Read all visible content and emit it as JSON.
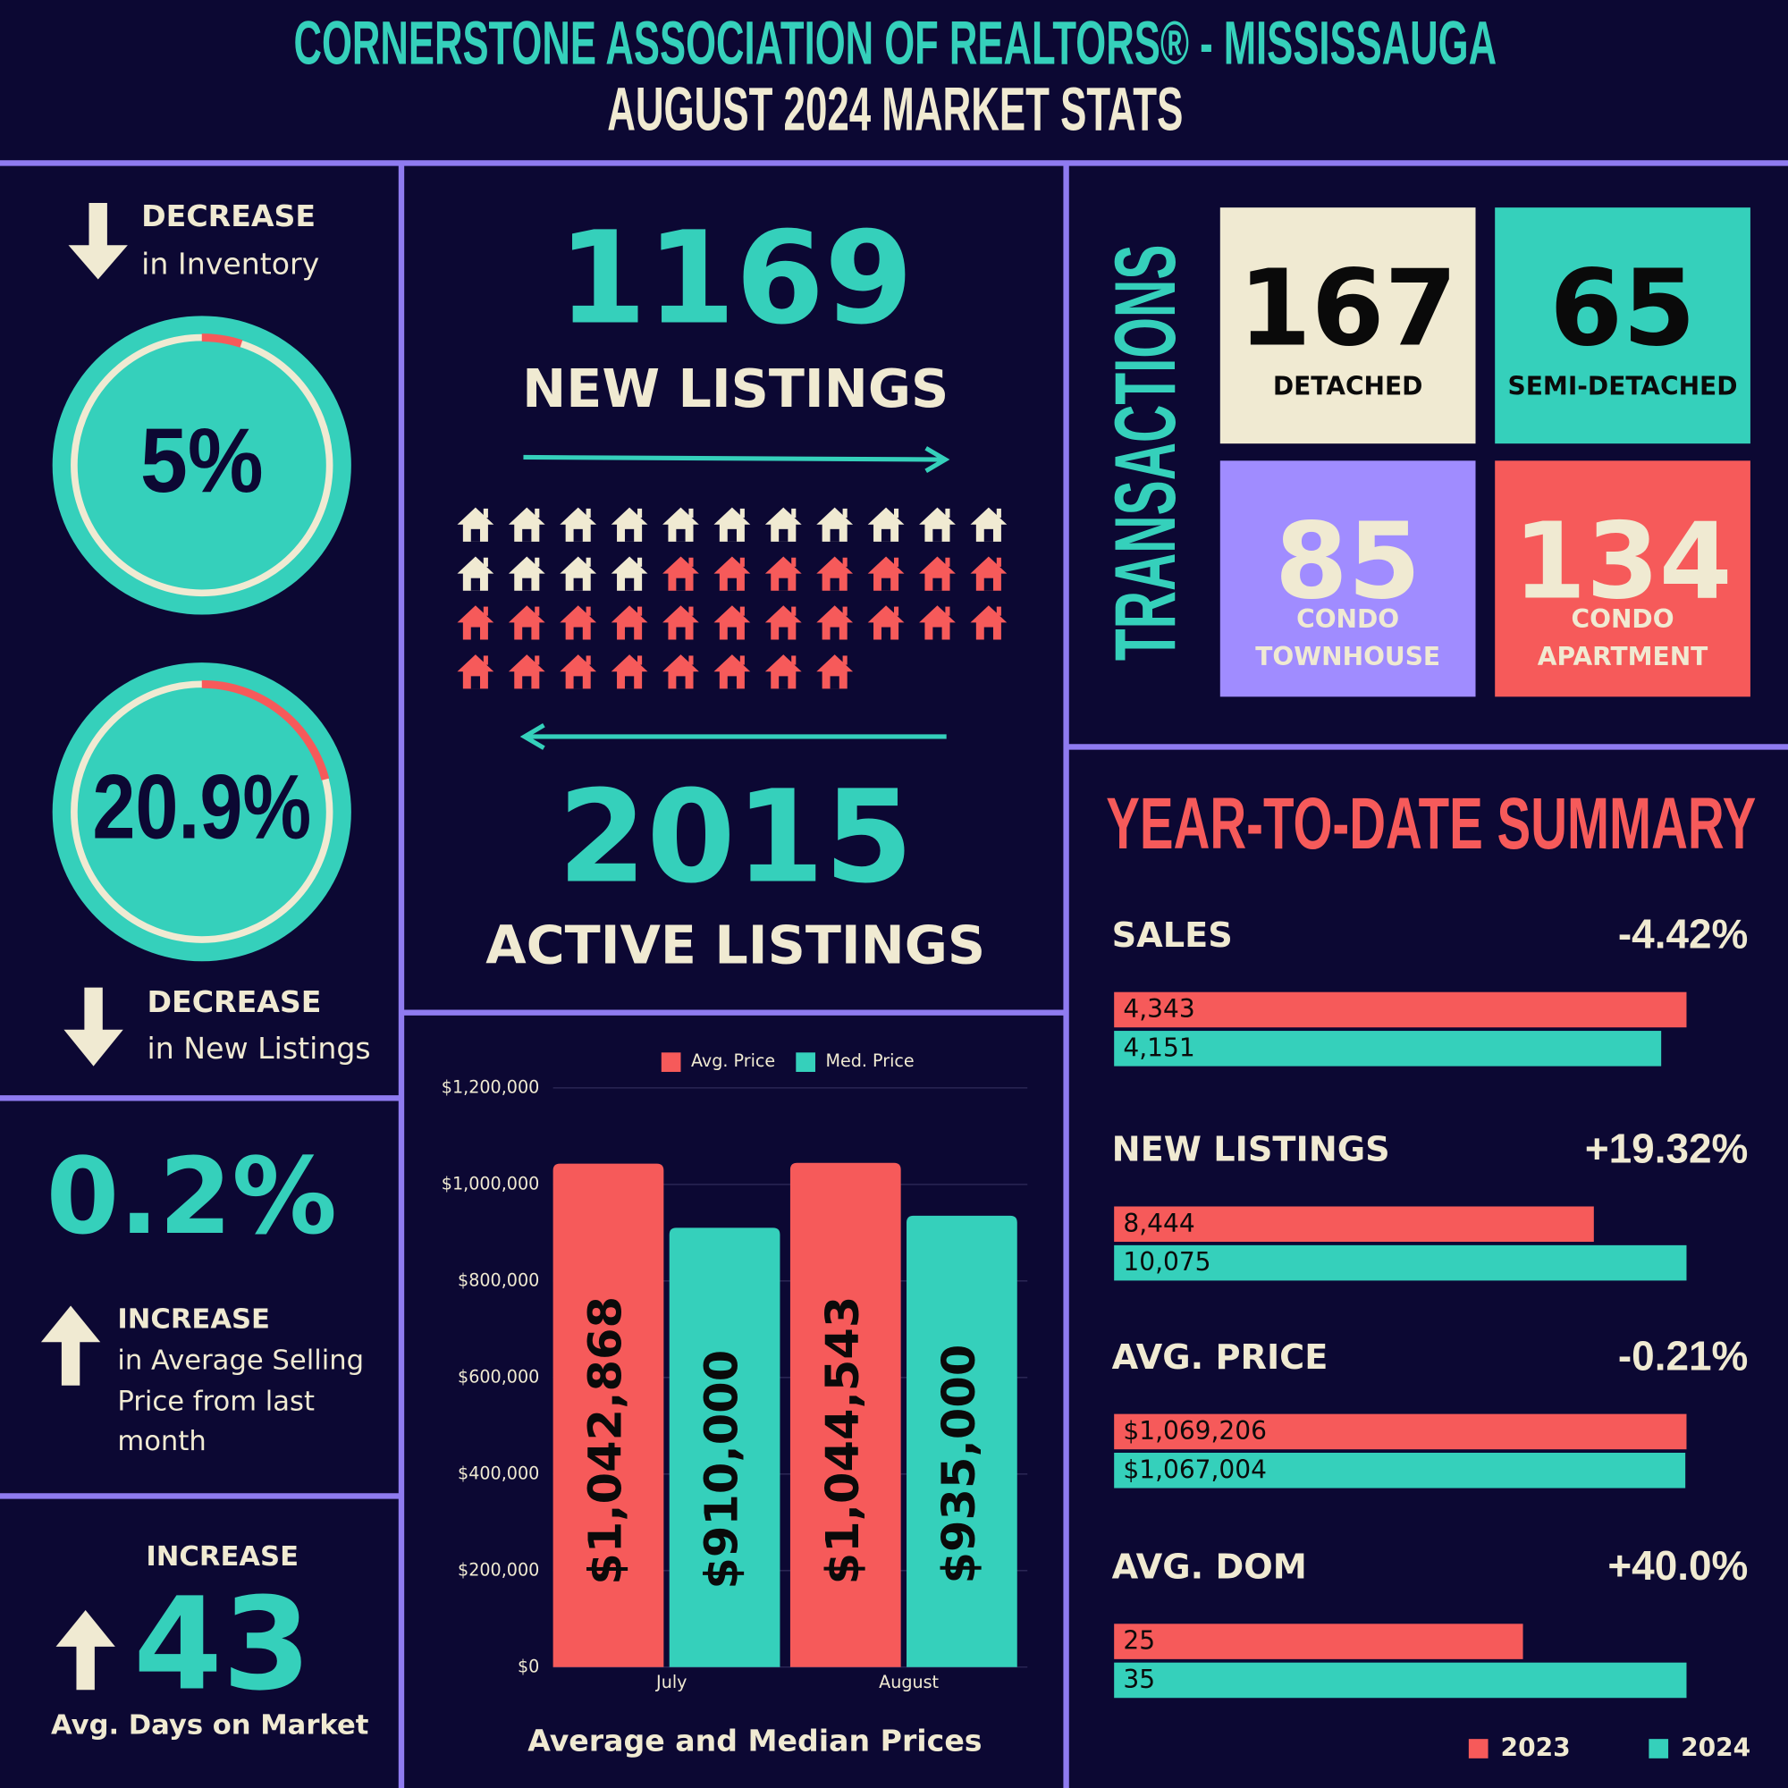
{
  "header": {
    "title": "CORNERSTONE ASSOCIATION OF REALTORS® - MISSISSAUGA",
    "subtitle": "AUGUST 2024 MARKET STATS"
  },
  "inventory": {
    "label": "DECREASE",
    "text": "in Inventory",
    "value": 5,
    "value_label": "5%"
  },
  "new_listings_change": {
    "label": "DECREASE",
    "text": "in New Listings",
    "value": 20.9,
    "value_label": "20.9%"
  },
  "price_change": {
    "value": 0.2,
    "value_label": "0.2%",
    "label": "INCREASE",
    "text_lines": [
      "in Average Selling",
      "Price from last",
      "month"
    ]
  },
  "dom": {
    "label": "INCREASE",
    "value": 43,
    "text": "Avg. Days on Market"
  },
  "listings": {
    "new": 1169,
    "new_label": "NEW LISTINGS",
    "active": 2015,
    "active_label": "ACTIVE LISTINGS",
    "pictogram": {
      "cream": 15,
      "red": 26
    }
  },
  "transactions": {
    "title": "TRANSACTIONS",
    "items": [
      {
        "value": 167,
        "label": [
          "DETACHED"
        ],
        "color": "#f0ead2",
        "text_color": "#0a0a0a"
      },
      {
        "value": 65,
        "label": [
          "SEMI-DETACHED"
        ],
        "color": "#35d0bb",
        "text_color": "#0a0a0a"
      },
      {
        "value": 85,
        "label": [
          "CONDO",
          "TOWNHOUSE"
        ],
        "color": "#a08cff",
        "text_color": "#f0ead2"
      },
      {
        "value": 134,
        "label": [
          "CONDO",
          "APARTMENT"
        ],
        "color": "#f65a5a",
        "text_color": "#f0ead2"
      }
    ]
  },
  "chart_data": [
    {
      "type": "bar",
      "title": "Average and Median Prices",
      "categories": [
        "July",
        "August"
      ],
      "series": [
        {
          "name": "Avg. Price",
          "color": "#f65a5a",
          "values": [
            1042868,
            1044543
          ],
          "value_labels": [
            "$1,042,868",
            "$1,044,543"
          ]
        },
        {
          "name": "Med. Price",
          "color": "#35d0bb",
          "values": [
            910000,
            935000
          ],
          "value_labels": [
            "$910,000",
            "$935,000"
          ]
        }
      ],
      "ylim": [
        0,
        1200000
      ],
      "yticks": [
        {
          "value": 0,
          "label": "$0"
        },
        {
          "value": 200000,
          "label": "$200,000"
        },
        {
          "value": 400000,
          "label": "$400,000"
        },
        {
          "value": 600000,
          "label": "$600,000"
        },
        {
          "value": 800000,
          "label": "$800,000"
        },
        {
          "value": 1000000,
          "label": "$1,000,000"
        },
        {
          "value": 1200000,
          "label": "$1,200,000"
        }
      ],
      "grid": true
    },
    {
      "type": "barh",
      "title": "YEAR-TO-DATE SUMMARY",
      "categories": [
        "SALES",
        "NEW LISTINGS",
        "AVG. PRICE",
        "AVG. DOM"
      ],
      "changes": [
        {
          "value": -4.42,
          "label": "-4.42%"
        },
        {
          "value": 19.32,
          "label": "+19.32%"
        },
        {
          "value": -0.21,
          "label": "-0.21%"
        },
        {
          "value": 40.0,
          "label": "+40.0%"
        }
      ],
      "series": [
        {
          "name": "2023",
          "color": "#f65a5a",
          "values": [
            4343,
            8444,
            1069206,
            25
          ],
          "value_labels": [
            "4,343",
            "8,444",
            "$1,069,206",
            "25"
          ]
        },
        {
          "name": "2024",
          "color": "#35d0bb",
          "values": [
            4151,
            10075,
            1067004,
            35
          ],
          "value_labels": [
            "4,151",
            "10,075",
            "$1,067,004",
            "35"
          ]
        }
      ]
    }
  ]
}
